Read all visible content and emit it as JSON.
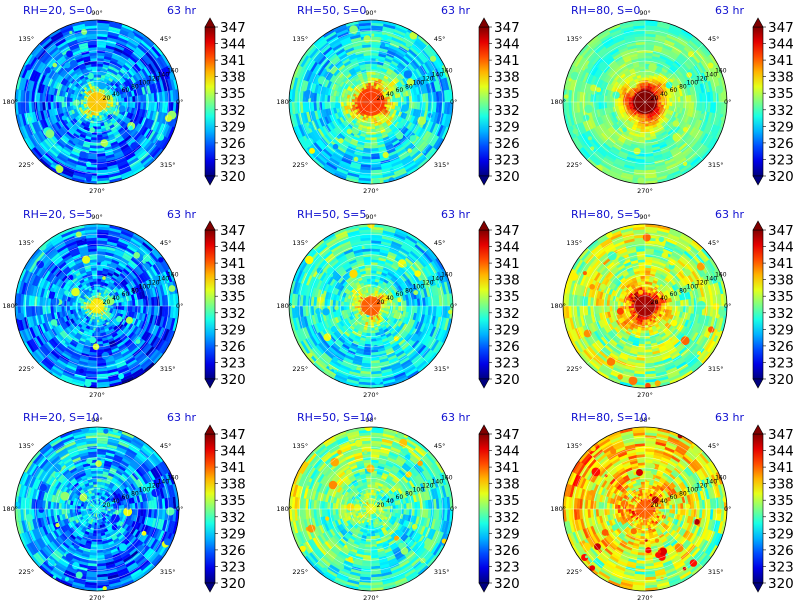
{
  "chart_data": {
    "type": "heatmap",
    "projection": "polar",
    "time_label": "63 hr",
    "angle_ticks": [
      "0°",
      "45°",
      "90°",
      "135°",
      "180°",
      "225°",
      "270°",
      "315°"
    ],
    "radius_ticks": [
      20,
      40,
      60,
      80,
      100,
      120,
      140,
      160
    ],
    "radius_range": [
      0,
      160
    ],
    "colormap": "jet",
    "color_range": [
      320,
      348
    ],
    "colorbar_ticks": [
      320,
      323,
      326,
      329,
      332,
      335,
      338,
      341,
      344,
      347
    ],
    "grid": true,
    "panels": [
      {
        "title": "RH=20, S=0",
        "rh": 20,
        "shear": 0,
        "core_value": 339,
        "core_radius": 22,
        "env_value": 327,
        "noise": 5
      },
      {
        "title": "RH=50, S=0",
        "rh": 50,
        "shear": 0,
        "core_value": 343,
        "core_radius": 32,
        "env_value": 330,
        "noise": 4
      },
      {
        "title": "RH=80, S=0",
        "rh": 80,
        "shear": 0,
        "core_value": 348,
        "core_radius": 28,
        "env_value": 333,
        "noise": 2
      },
      {
        "title": "RH=20, S=5",
        "rh": 20,
        "shear": 5,
        "core_value": 338,
        "core_radius": 16,
        "env_value": 327,
        "noise": 5
      },
      {
        "title": "RH=50, S=5",
        "rh": 50,
        "shear": 5,
        "core_value": 342,
        "core_radius": 22,
        "env_value": 331,
        "noise": 4
      },
      {
        "title": "RH=80, S=5",
        "rh": 80,
        "shear": 5,
        "core_value": 347,
        "core_radius": 25,
        "env_value": 335,
        "noise": 4
      },
      {
        "title": "RH=20, S=10",
        "rh": 20,
        "shear": 10,
        "core_value": 331,
        "core_radius": 10,
        "env_value": 328,
        "noise": 5
      },
      {
        "title": "RH=50, S=10",
        "rh": 50,
        "shear": 10,
        "core_value": 337,
        "core_radius": 12,
        "env_value": 333,
        "noise": 4
      },
      {
        "title": "RH=80, S=10",
        "rh": 80,
        "shear": 10,
        "core_value": 342,
        "core_radius": 20,
        "env_value": 337,
        "noise": 5
      }
    ]
  }
}
